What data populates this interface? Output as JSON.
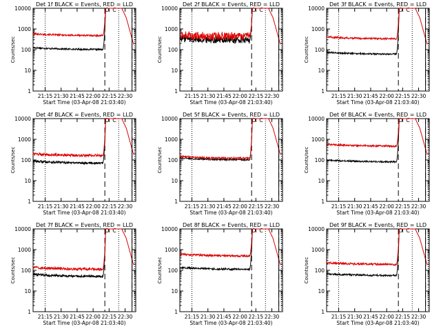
{
  "chart_data": [
    {
      "type": "line",
      "title": "Det 1f BLACK = Events, RED = LLD",
      "xlabel": "Start Time (03-Apr-08 21:03:40)",
      "ylabel": "Counts/sec",
      "black_base": 100,
      "red_base": 470,
      "noise": 0.12
    },
    {
      "type": "line",
      "title": "Det 2f BLACK = Events, RED = LLD",
      "xlabel": "Start Time (03-Apr-08 21:03:40)",
      "ylabel": "Counts/sec",
      "black_base": 280,
      "red_base": 420,
      "noise": 0.55
    },
    {
      "type": "line",
      "title": "Det 3f BLACK = Events, RED = LLD",
      "xlabel": "Start Time (03-Apr-08 21:03:40)",
      "ylabel": "Counts/sec",
      "black_base": 60,
      "red_base": 330,
      "noise": 0.12
    },
    {
      "type": "line",
      "title": "Det 4f BLACK = Events, RED = LLD",
      "xlabel": "Start Time (03-Apr-08 21:03:40)",
      "ylabel": "Counts/sec",
      "black_base": 70,
      "red_base": 160,
      "noise": 0.18
    },
    {
      "type": "line",
      "title": "Det 5f BLACK = Events, RED = LLD",
      "xlabel": "Start Time (03-Apr-08 21:03:40)",
      "ylabel": "Counts/sec",
      "black_base": 100,
      "red_base": 120,
      "noise": 0.12
    },
    {
      "type": "line",
      "title": "Det 6f BLACK = Events, RED = LLD",
      "xlabel": "Start Time (03-Apr-08 21:03:40)",
      "ylabel": "Counts/sec",
      "black_base": 80,
      "red_base": 460,
      "noise": 0.12
    },
    {
      "type": "line",
      "title": "Det 7f BLACK = Events, RED = LLD",
      "xlabel": "Start Time (03-Apr-08 21:03:40)",
      "ylabel": "Counts/sec",
      "black_base": 50,
      "red_base": 110,
      "noise": 0.18
    },
    {
      "type": "line",
      "title": "Det 8f BLACK = Events, RED = LLD",
      "xlabel": "Start Time (03-Apr-08 21:03:40)",
      "ylabel": "Counts/sec",
      "black_base": 110,
      "red_base": 480,
      "noise": 0.14
    },
    {
      "type": "line",
      "title": "Det 9f BLACK = Events, RED = LLD",
      "xlabel": "Start Time (03-Apr-08 21:03:40)",
      "ylabel": "Counts/sec",
      "black_base": 55,
      "red_base": 190,
      "noise": 0.14
    }
  ],
  "shared": {
    "x_ticks": [
      "21:15",
      "21:30",
      "21:45",
      "22:00",
      "22:15",
      "22:30"
    ],
    "y_ticks": [
      "1",
      "10",
      "100",
      "1000",
      "10000"
    ],
    "ylim": [
      1,
      10000
    ],
    "xlim": [
      "21:03:40",
      "22:40:00"
    ],
    "series_colors": {
      "events": "#000000",
      "lld": "#dd0000"
    },
    "marker_labels": [
      "O",
      "C"
    ]
  }
}
